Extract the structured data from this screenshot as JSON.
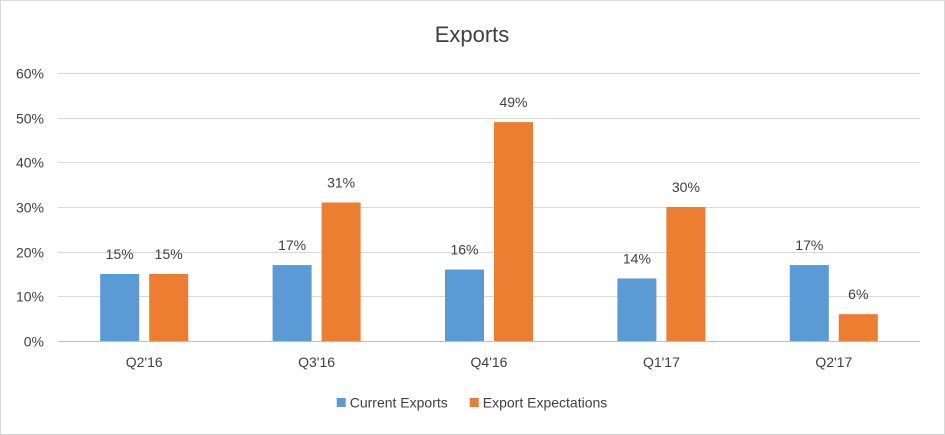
{
  "chart_data": {
    "type": "bar",
    "title": "Exports",
    "categories": [
      "Q2'16",
      "Q3'16",
      "Q4'16",
      "Q1'17",
      "Q2'17"
    ],
    "series": [
      {
        "name": "Current Exports",
        "values": [
          15,
          17,
          16,
          14,
          17
        ],
        "labels": [
          "15%",
          "17%",
          "16%",
          "14%",
          "17%"
        ],
        "color": "#5b9bd5"
      },
      {
        "name": "Export Expectations",
        "values": [
          15,
          31,
          49,
          30,
          6
        ],
        "labels": [
          "15%",
          "31%",
          "49%",
          "30%",
          "6%"
        ],
        "color": "#ed7d31"
      }
    ],
    "ylim": [
      0,
      60
    ],
    "yticks": [
      0,
      10,
      20,
      30,
      40,
      50,
      60
    ],
    "ytick_labels": [
      "0%",
      "10%",
      "20%",
      "30%",
      "40%",
      "50%",
      "60%"
    ],
    "grid": true,
    "legend_position": "bottom"
  }
}
